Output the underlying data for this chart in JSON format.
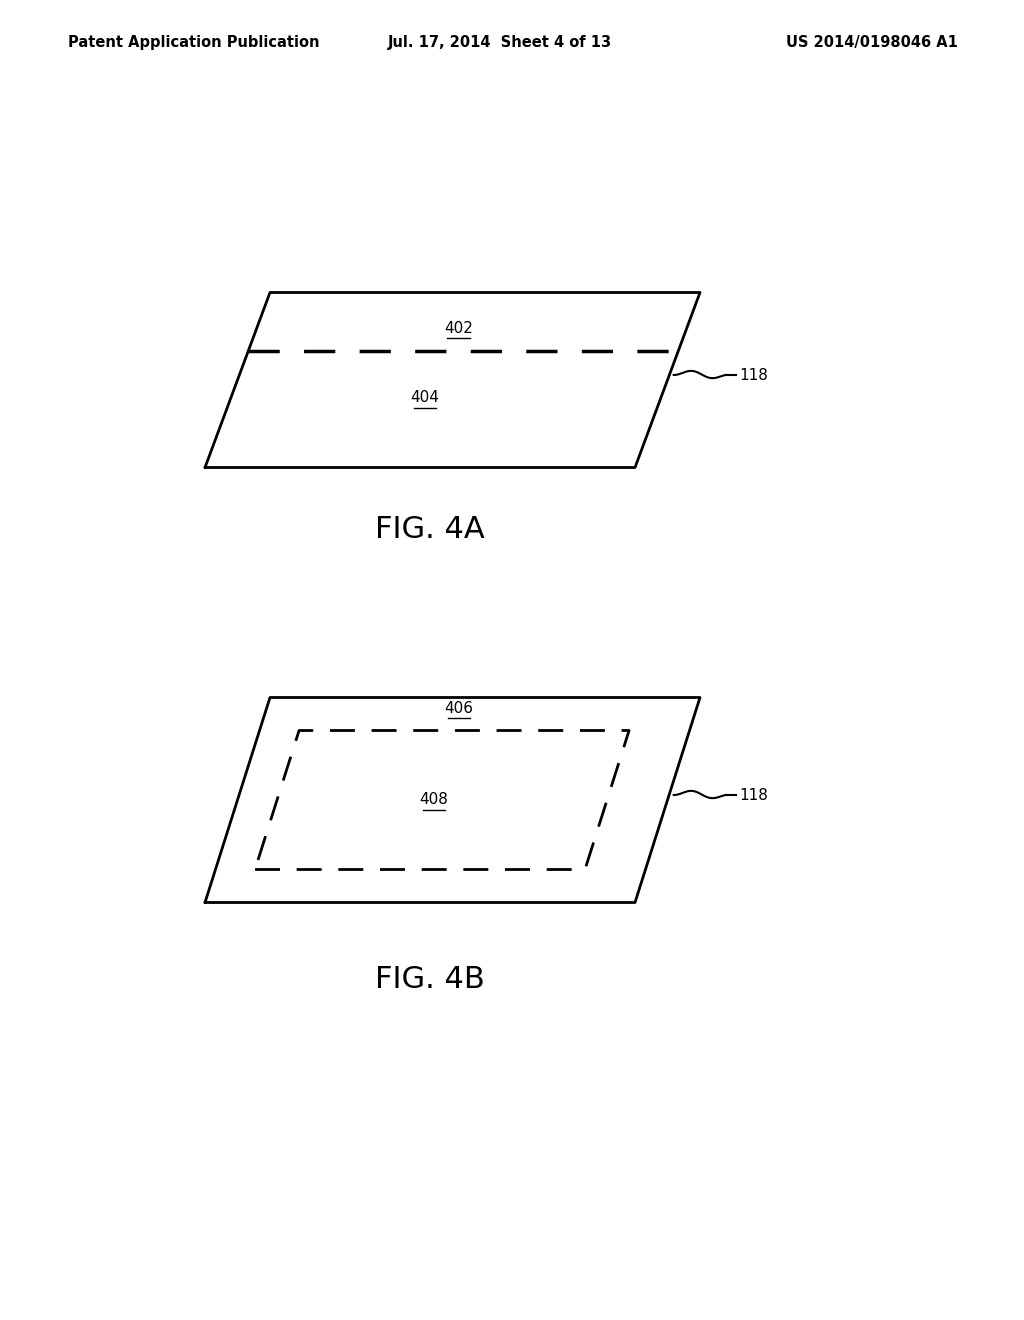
{
  "bg_color": "#ffffff",
  "header_left": "Patent Application Publication",
  "header_mid": "Jul. 17, 2014  Sheet 4 of 13",
  "header_right": "US 2014/0198046 A1",
  "header_fontsize": 10.5,
  "fig4a_label": "FIG. 4A",
  "fig4b_label": "FIG. 4B",
  "label_402": "402",
  "label_404": "404",
  "label_406": "406",
  "label_408": "408",
  "label_118": "118",
  "label_fontsize": 11,
  "fig_label_fontsize": 22
}
